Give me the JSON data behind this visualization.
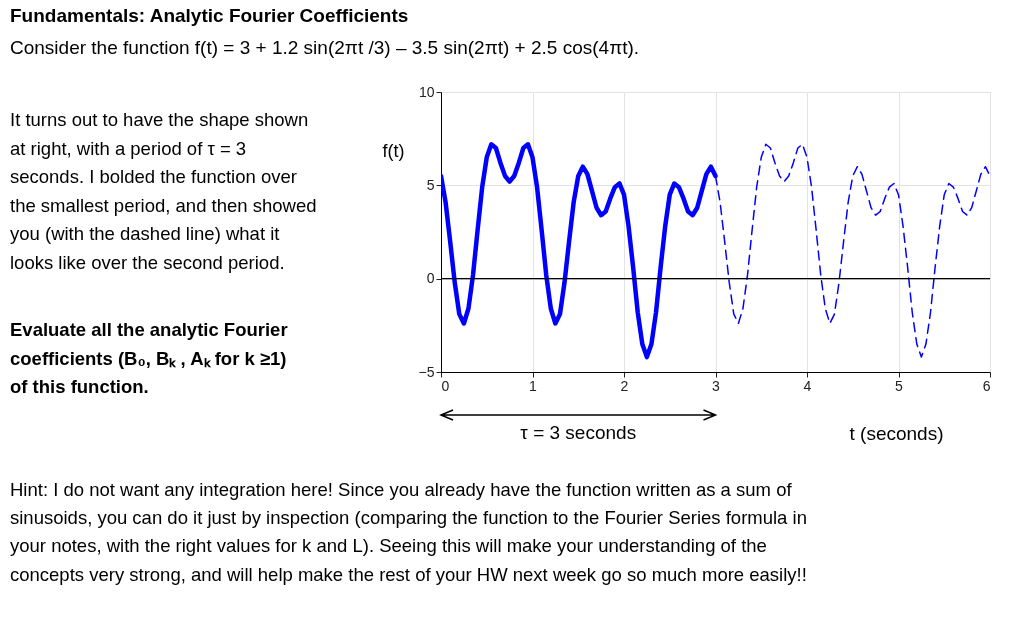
{
  "chart_data": {
    "type": "line",
    "title": "Fundamentals:  Analytic Fourier Coefficients",
    "subtitle": "Consider the function f(t) =  3 + 1.2 sin(2πt /3) – 3.5 sin(2πt) + 2.5 cos(4πt).",
    "xlabel": "t (seconds)",
    "ylabel": "f(t)",
    "annotations": [
      "It turns out to have the shape shown at right, with a period of τ = 3 seconds. I bolded the function over the smallest period, and then showed you (with the dashed line) what it looks like over the second period.",
      "Evaluate all the analytic Fourier coefficients (B₀, Bₖ , Aₖ for k ≥1) of this function.",
      "τ = 3 seconds",
      "Hint:  I do not want any integration here!  Since you already have the function written as a sum of sinusoids, you can do it just by inspection (comparing the function to the Fourier Series formula in your notes, with the right values for k and L).  Seeing this will make your understanding of the concepts very strong, and will help make the rest of your HW next week go so much more easily!!"
    ],
    "series": [
      {
        "color": "#0000ff",
        "line_style": "solid",
        "x": [
          0,
          0.05,
          0.1,
          0.15,
          0.2,
          0.25,
          0.3,
          0.35,
          0.4,
          0.45,
          0.5,
          0.55,
          0.6,
          0.65,
          0.7,
          0.75,
          0.8,
          0.85,
          0.9,
          0.95,
          1,
          1.05,
          1.1,
          1.15,
          1.2,
          1.25,
          1.3,
          1.35,
          1.4,
          1.45,
          1.5,
          1.55,
          1.6,
          1.65,
          1.7,
          1.75,
          1.8,
          1.85,
          1.9,
          1.95,
          2,
          2.05,
          2.1,
          2.15,
          2.2,
          2.25,
          2.3,
          2.35,
          2.4,
          2.45,
          2.5,
          2.55,
          2.6,
          2.65,
          2.7,
          2.75,
          2.8,
          2.85,
          2.9,
          2.95,
          3
        ],
        "values": [
          5.5,
          4.1,
          2.0,
          -0.2,
          -1.9,
          -2.4,
          -1.6,
          0.2,
          2.6,
          4.9,
          6.5,
          7.2,
          7.0,
          6.2,
          5.5,
          5.2,
          5.5,
          6.2,
          7.0,
          7.2,
          6.5,
          4.9,
          2.6,
          0.2,
          -1.6,
          -2.4,
          -1.9,
          -0.2,
          2.0,
          4.1,
          5.5,
          6.0,
          5.6,
          4.7,
          3.8,
          3.4,
          3.6,
          4.3,
          4.9,
          5.1,
          4.5,
          2.8,
          0.6,
          -1.8,
          -3.5,
          -4.2,
          -3.5,
          -1.8,
          0.6,
          2.8,
          4.5,
          5.1,
          4.9,
          4.3,
          3.6,
          3.4,
          3.8,
          4.7,
          5.6,
          6.0,
          5.5
        ]
      },
      {
        "color": "#0000ff",
        "line_style": "dashed",
        "x": [
          3,
          3.05,
          3.1,
          3.15,
          3.2,
          3.25,
          3.3,
          3.35,
          3.4,
          3.45,
          3.5,
          3.55,
          3.6,
          3.65,
          3.7,
          3.75,
          3.8,
          3.85,
          3.9,
          3.95,
          4,
          4.05,
          4.1,
          4.15,
          4.2,
          4.25,
          4.3,
          4.35,
          4.4,
          4.45,
          4.5,
          4.55,
          4.6,
          4.65,
          4.7,
          4.75,
          4.8,
          4.85,
          4.9,
          4.95,
          5,
          5.05,
          5.1,
          5.15,
          5.2,
          5.25,
          5.3,
          5.35,
          5.4,
          5.45,
          5.5,
          5.55,
          5.6,
          5.65,
          5.7,
          5.75,
          5.8,
          5.85,
          5.9,
          5.95,
          6
        ],
        "values": [
          5.5,
          4.1,
          2.0,
          -0.2,
          -1.9,
          -2.4,
          -1.6,
          0.2,
          2.6,
          4.9,
          6.5,
          7.2,
          7.0,
          6.2,
          5.5,
          5.2,
          5.5,
          6.2,
          7.0,
          7.2,
          6.5,
          4.9,
          2.6,
          0.2,
          -1.6,
          -2.4,
          -1.9,
          -0.2,
          2.0,
          4.1,
          5.5,
          6.0,
          5.6,
          4.7,
          3.8,
          3.4,
          3.6,
          4.3,
          4.9,
          5.1,
          4.5,
          2.8,
          0.6,
          -1.8,
          -3.5,
          -4.2,
          -3.5,
          -1.8,
          0.6,
          2.8,
          4.5,
          5.1,
          4.9,
          4.3,
          3.6,
          3.4,
          3.8,
          4.7,
          5.6,
          6.0,
          5.5
        ]
      }
    ],
    "xlim": [
      0,
      6
    ],
    "xticks": [
      0,
      1,
      2,
      3,
      4,
      5,
      6
    ],
    "ylim": [
      -5,
      10
    ],
    "yticks": [
      -5,
      0,
      5,
      10
    ],
    "grid": true,
    "ref_lines": [
      {
        "axis": "y",
        "value": 0,
        "color": "#000000"
      }
    ]
  }
}
